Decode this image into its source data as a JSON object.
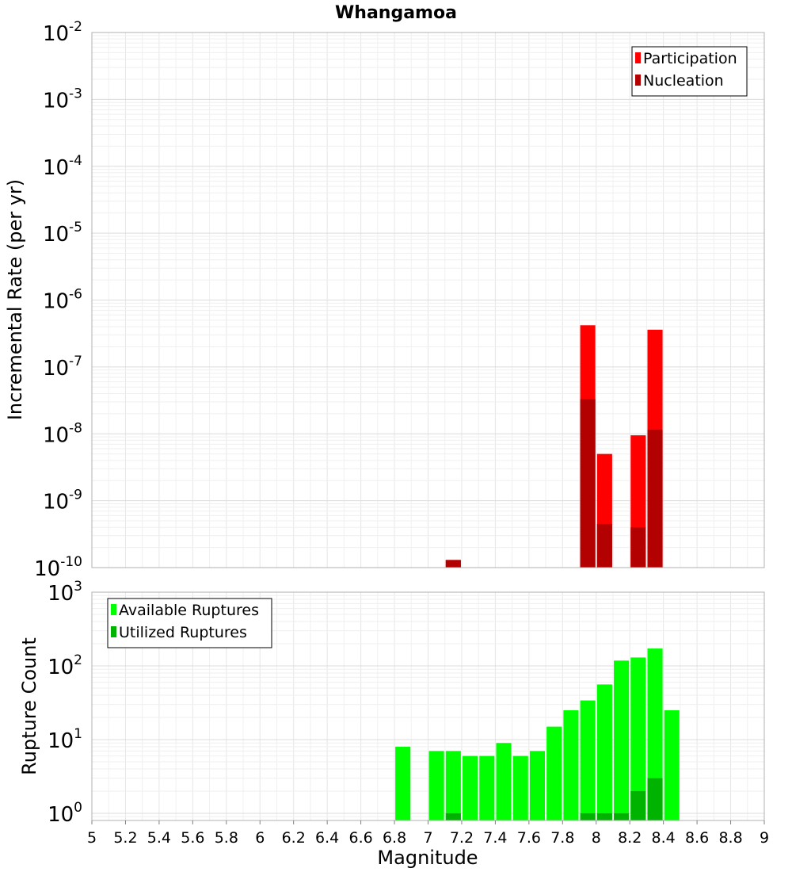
{
  "chart_data": [
    {
      "type": "bar",
      "title": "Whangamoa",
      "ylabel": "Incremental Rate (per yr)",
      "xlabel": "",
      "y_scale": "log",
      "ylim": [
        1e-10,
        0.01
      ],
      "xlim": [
        5,
        9
      ],
      "y_ticks": [
        {
          "base": "10",
          "exp": "-2",
          "value": 0.01
        },
        {
          "base": "10",
          "exp": "-3",
          "value": 0.001
        },
        {
          "base": "10",
          "exp": "-4",
          "value": 0.0001
        },
        {
          "base": "10",
          "exp": "-5",
          "value": 1e-05
        },
        {
          "base": "10",
          "exp": "-6",
          "value": 1e-06
        },
        {
          "base": "10",
          "exp": "-7",
          "value": 1e-07
        },
        {
          "base": "10",
          "exp": "-8",
          "value": 1e-08
        },
        {
          "base": "10",
          "exp": "-9",
          "value": 1e-09
        },
        {
          "base": "10",
          "exp": "-10",
          "value": 1e-10
        }
      ],
      "legend": {
        "position": "top-right",
        "items": [
          "Participation",
          "Nucleation"
        ]
      },
      "series": [
        {
          "name": "Participation",
          "color": "#ff0000",
          "points": [
            {
              "x": 7.15,
              "y": 1.3e-10
            },
            {
              "x": 7.95,
              "y": 4.2e-07
            },
            {
              "x": 8.05,
              "y": 5e-09
            },
            {
              "x": 8.25,
              "y": 9.5e-09
            },
            {
              "x": 8.35,
              "y": 3.6e-07
            }
          ]
        },
        {
          "name": "Nucleation",
          "color": "#b30000",
          "points": [
            {
              "x": 7.15,
              "y": 1.3e-10
            },
            {
              "x": 7.95,
              "y": 3.3e-08
            },
            {
              "x": 8.05,
              "y": 4.5e-10
            },
            {
              "x": 8.25,
              "y": 4e-10
            },
            {
              "x": 8.35,
              "y": 1.15e-08
            }
          ]
        }
      ]
    },
    {
      "type": "bar",
      "title": "",
      "ylabel": "Rupture Count",
      "xlabel": "Magnitude",
      "y_scale": "log",
      "ylim": [
        0.8,
        1000
      ],
      "xlim": [
        5,
        9
      ],
      "y_ticks": [
        {
          "base": "10",
          "exp": "3",
          "value": 1000
        },
        {
          "base": "10",
          "exp": "2",
          "value": 100
        },
        {
          "base": "10",
          "exp": "1",
          "value": 10
        },
        {
          "base": "10",
          "exp": "0",
          "value": 1
        }
      ],
      "x_ticks": [
        "5",
        "5.2",
        "5.4",
        "5.6",
        "5.8",
        "6",
        "6.2",
        "6.4",
        "6.6",
        "6.8",
        "7",
        "7.2",
        "7.4",
        "7.6",
        "7.8",
        "8",
        "8.2",
        "8.4",
        "8.6",
        "8.8",
        "9"
      ],
      "x_tick_values": [
        5,
        5.2,
        5.4,
        5.6,
        5.8,
        6,
        6.2,
        6.4,
        6.6,
        6.8,
        7,
        7.2,
        7.4,
        7.6,
        7.8,
        8,
        8.2,
        8.4,
        8.6,
        8.8,
        9
      ],
      "legend": {
        "position": "top-left",
        "items": [
          "Available Ruptures",
          "Utilized Ruptures"
        ]
      },
      "series": [
        {
          "name": "Available Ruptures",
          "color": "#00ff00",
          "points": [
            {
              "x": 6.85,
              "y": 8
            },
            {
              "x": 7.05,
              "y": 7
            },
            {
              "x": 7.15,
              "y": 7
            },
            {
              "x": 7.25,
              "y": 6
            },
            {
              "x": 7.35,
              "y": 6
            },
            {
              "x": 7.45,
              "y": 9
            },
            {
              "x": 7.55,
              "y": 6
            },
            {
              "x": 7.65,
              "y": 7
            },
            {
              "x": 7.75,
              "y": 15
            },
            {
              "x": 7.85,
              "y": 25
            },
            {
              "x": 7.95,
              "y": 34
            },
            {
              "x": 8.05,
              "y": 56
            },
            {
              "x": 8.15,
              "y": 118
            },
            {
              "x": 8.25,
              "y": 130
            },
            {
              "x": 8.35,
              "y": 172
            },
            {
              "x": 8.45,
              "y": 25
            }
          ]
        },
        {
          "name": "Utilized Ruptures",
          "color": "#00b300",
          "points": [
            {
              "x": 7.15,
              "y": 1
            },
            {
              "x": 7.95,
              "y": 1
            },
            {
              "x": 8.05,
              "y": 1
            },
            {
              "x": 8.15,
              "y": 1
            },
            {
              "x": 8.25,
              "y": 2
            },
            {
              "x": 8.35,
              "y": 3
            }
          ]
        }
      ]
    }
  ]
}
